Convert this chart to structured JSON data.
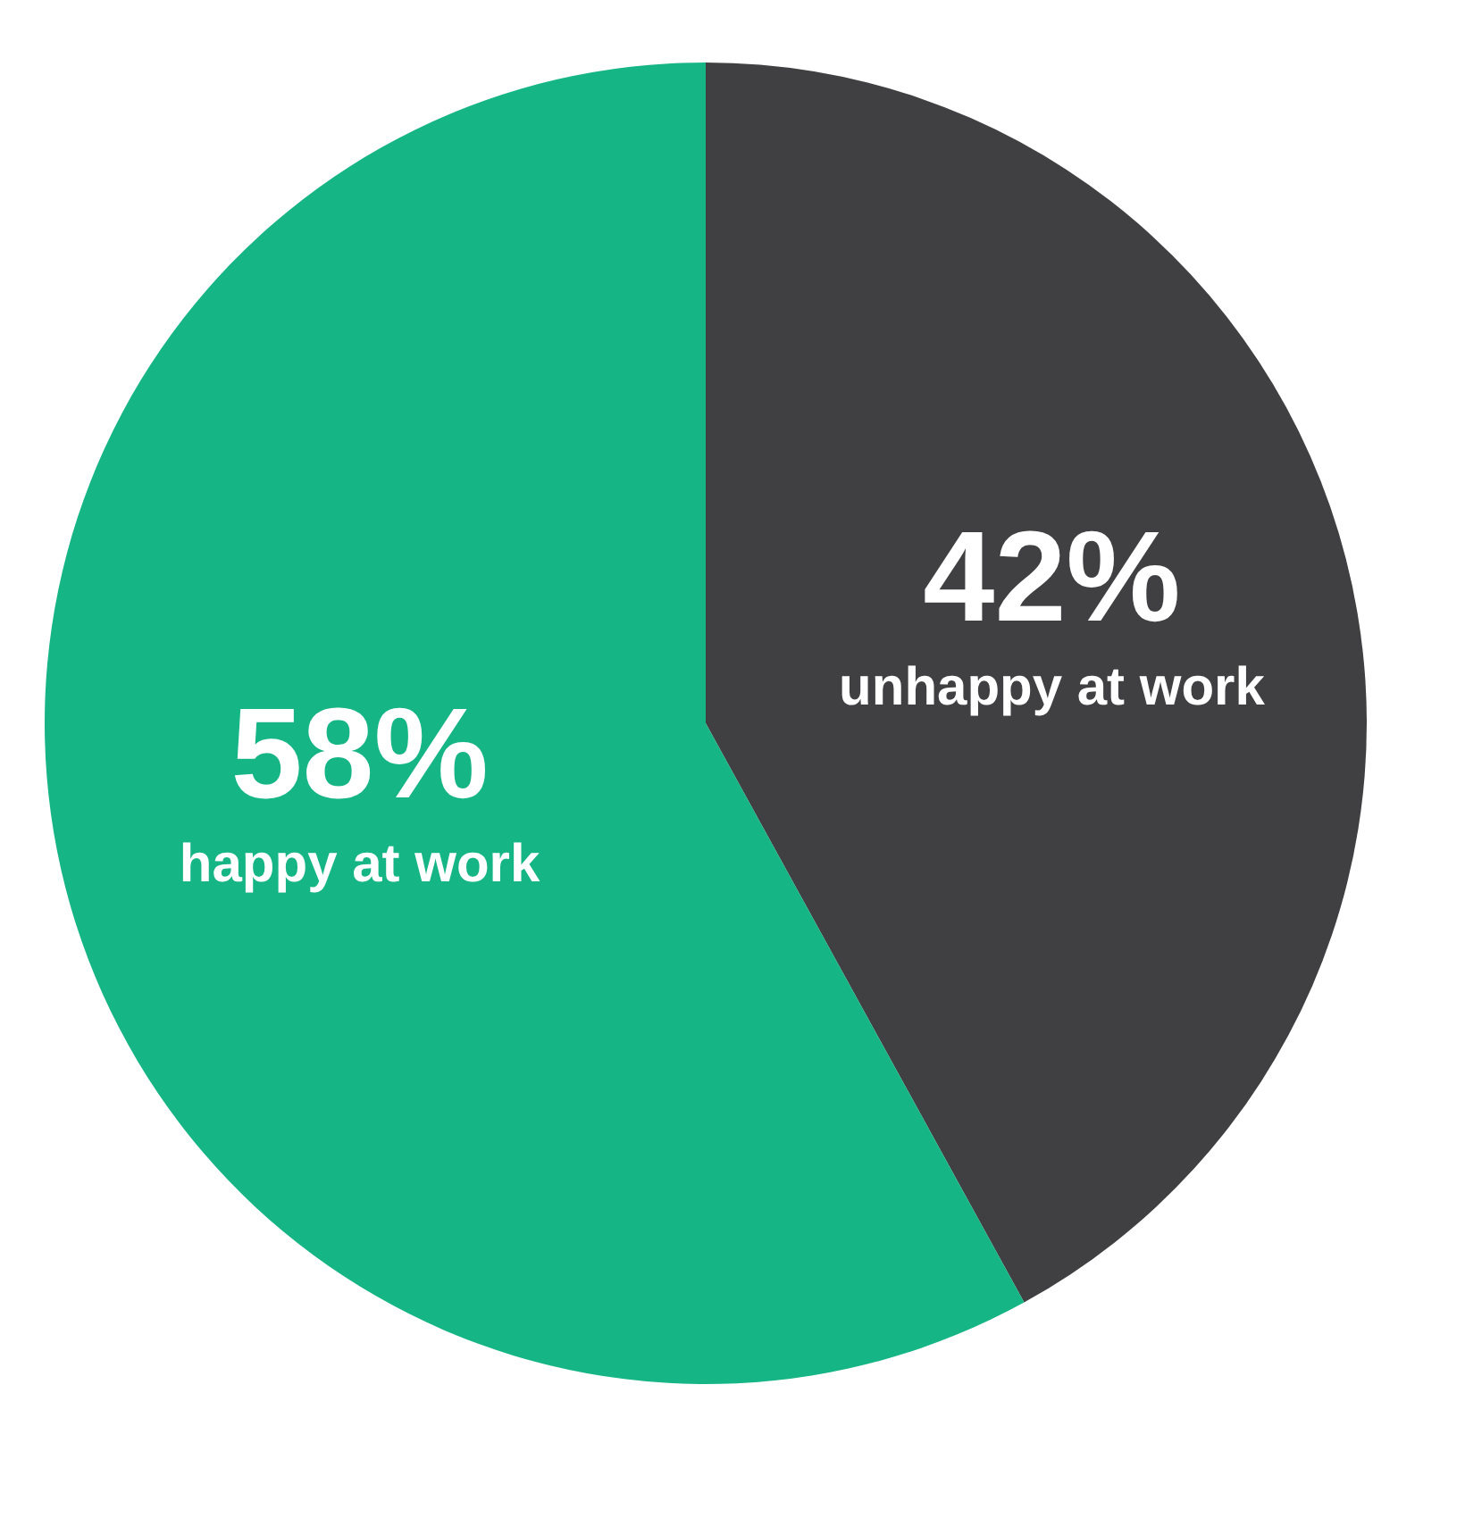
{
  "chart_data": {
    "type": "pie",
    "categories": [
      "unhappy at work",
      "happy at work"
    ],
    "values": [
      42,
      58
    ],
    "colors": [
      "#404042",
      "#16b585"
    ],
    "value_labels": [
      "42%",
      "58%"
    ]
  }
}
